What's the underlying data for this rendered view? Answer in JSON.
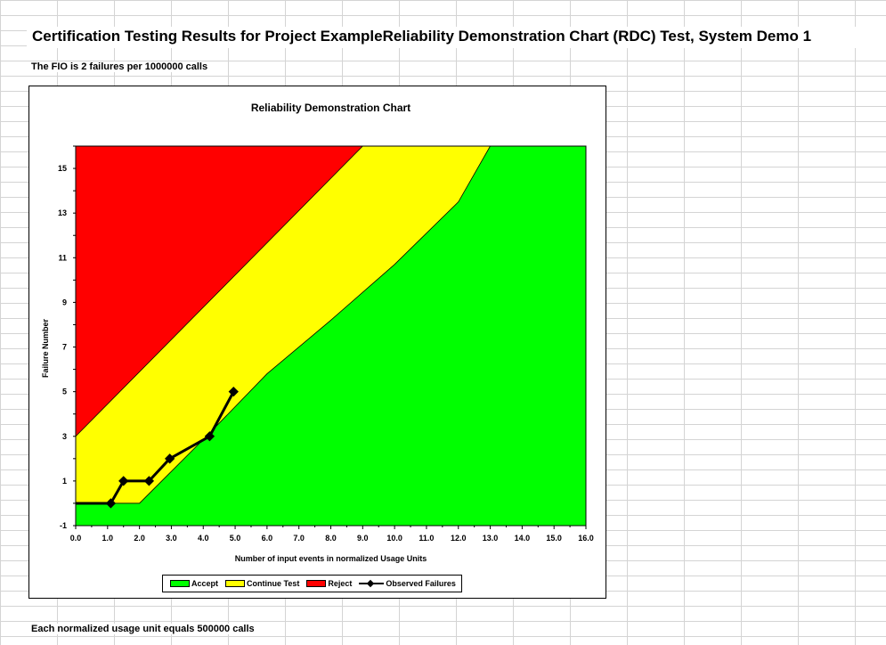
{
  "sheet": {
    "title": "Certification Testing Results for Project ExampleReliability Demonstration Chart (RDC) Test, System Demo 1",
    "fio_note": "The FIO is 2 failures per 1000000 calls",
    "unit_note": "Each normalized usage unit equals 500000 calls"
  },
  "chart_data": {
    "type": "area",
    "title": "Reliability Demonstration Chart",
    "xlabel": "Number of input events in normalized Usage Units",
    "ylabel": "Failure Number",
    "xlim": [
      0,
      16
    ],
    "ylim": [
      -1,
      16
    ],
    "x_ticks": [
      "0.0",
      "1.0",
      "2.0",
      "3.0",
      "4.0",
      "5.0",
      "6.0",
      "7.0",
      "8.0",
      "9.0",
      "10.0",
      "11.0",
      "12.0",
      "13.0",
      "14.0",
      "15.0",
      "16.0"
    ],
    "y_ticks": [
      "-1",
      "1",
      "3",
      "5",
      "7",
      "9",
      "11",
      "13",
      "15"
    ],
    "grid": false,
    "legend_position": "bottom",
    "regions": [
      {
        "name": "Accept",
        "color": "#00ff00"
      },
      {
        "name": "Continue Test",
        "color": "#ffff00"
      },
      {
        "name": "Reject",
        "color": "#ff0000"
      }
    ],
    "reject_boundary": {
      "x": [
        0,
        9.0
      ],
      "y": [
        3,
        16
      ]
    },
    "accept_boundary": {
      "x": [
        0,
        2.0,
        4.1,
        6.0,
        8.0,
        10.0,
        12.0,
        13.0
      ],
      "y": [
        0,
        0,
        3,
        5.8,
        8.2,
        10.7,
        13.5,
        16
      ]
    },
    "series": [
      {
        "name": "Observed Failures",
        "color": "#000000",
        "x": [
          0,
          1.1,
          1.5,
          2.3,
          2.95,
          4.2,
          4.95
        ],
        "y": [
          0,
          0,
          1,
          1,
          2,
          3,
          5
        ]
      }
    ]
  }
}
